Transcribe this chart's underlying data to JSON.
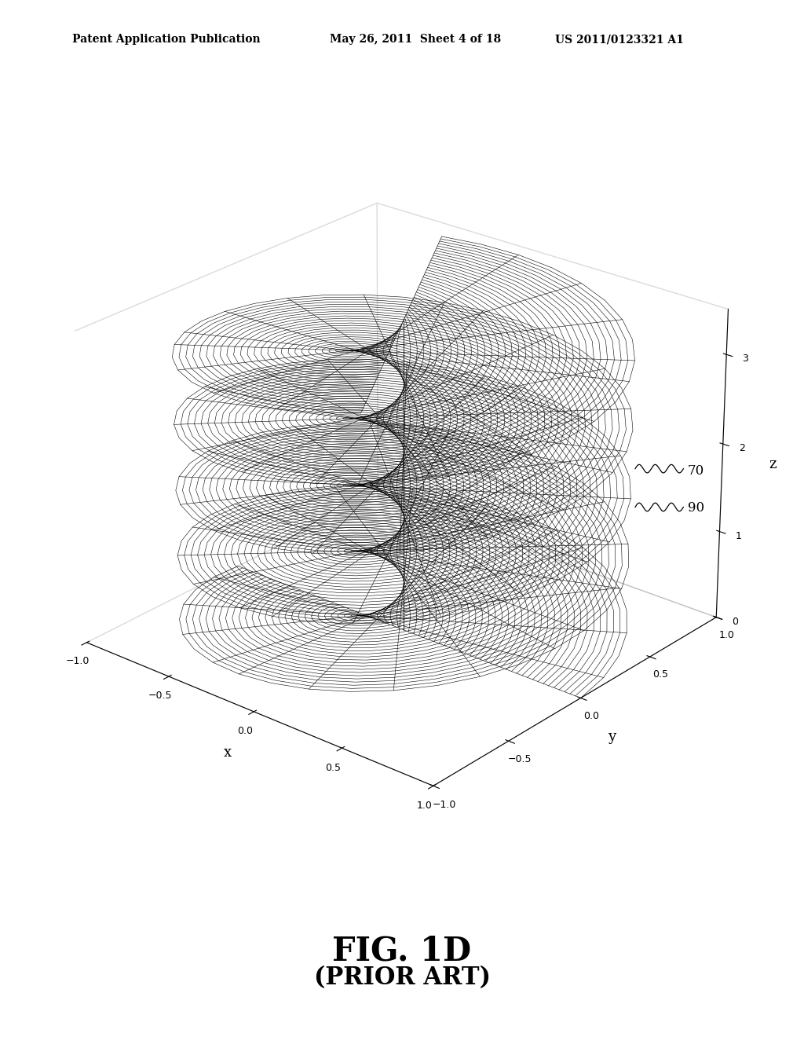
{
  "title_fig": "FIG. 1D",
  "subtitle_fig": "(PRIOR ART)",
  "patent_header_left": "Patent Application Publication",
  "patent_header_center": "May 26, 2011  Sheet 4 of 18",
  "patent_header_right": "US 2011/0123321 A1",
  "xlabel": "x",
  "ylabel": "y",
  "zlabel": "z",
  "xlim": [
    -1.0,
    1.0
  ],
  "ylim": [
    -1.0,
    1.0
  ],
  "zlim": [
    0,
    3.5
  ],
  "xticks": [
    -1.0,
    -0.5,
    0.0,
    0.5,
    1.0
  ],
  "yticks": [
    -1.0,
    -0.5,
    0.0,
    0.5,
    1.0
  ],
  "zticks": [
    0,
    1,
    2,
    3
  ],
  "label_70": "70",
  "label_90": "90",
  "n_blades": 2,
  "n_radial": 35,
  "n_axial": 80,
  "r_hub": 0.0,
  "r_tip": 1.0,
  "pitch": 1.5,
  "background_color": "#ffffff",
  "line_color": "#000000",
  "line_width": 0.4,
  "elev": 25,
  "azim": -50
}
